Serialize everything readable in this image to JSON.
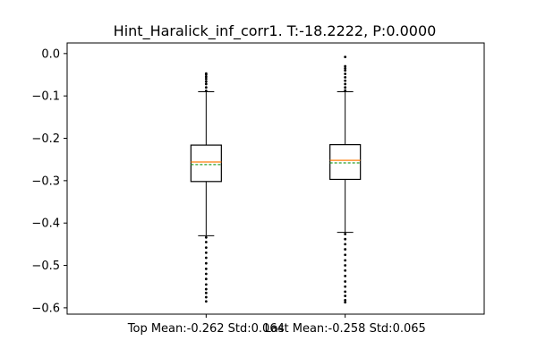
{
  "chart_data": {
    "type": "boxplot",
    "title": "Hint_Haralick_inf_corr1. T:-18.2222, P:0.0000",
    "xlabel": "",
    "ylabel": "",
    "ylim": [
      -0.615,
      0.025
    ],
    "yticks": [
      0.0,
      -0.1,
      -0.2,
      -0.3,
      -0.4,
      -0.5,
      -0.6
    ],
    "ytick_labels": [
      "0.0",
      "−0.1",
      "−0.2",
      "−0.3",
      "−0.4",
      "−0.5",
      "−0.6"
    ],
    "grid": false,
    "categories": [
      "Top Mean:-0.262 Std:0.064",
      "Last Mean:-0.258 Std:0.065"
    ],
    "boxes": [
      {
        "label": "Top Mean:-0.262 Std:0.064",
        "q1": -0.302,
        "median": -0.256,
        "q3": -0.216,
        "mean": -0.262,
        "whisker_low": -0.43,
        "whisker_high": -0.09,
        "fliers_high": [
          -0.088,
          -0.08,
          -0.072,
          -0.066,
          -0.06,
          -0.055,
          -0.05,
          -0.047
        ],
        "fliers_low": [
          -0.434,
          -0.445,
          -0.458,
          -0.47,
          -0.482,
          -0.495,
          -0.508,
          -0.52,
          -0.532,
          -0.545,
          -0.556,
          -0.565,
          -0.575,
          -0.585
        ]
      },
      {
        "label": "Last Mean:-0.258 Std:0.065",
        "q1": -0.297,
        "median": -0.252,
        "q3": -0.215,
        "mean": -0.258,
        "whisker_low": -0.422,
        "whisker_high": -0.09,
        "fliers_high": [
          -0.087,
          -0.08,
          -0.072,
          -0.064,
          -0.056,
          -0.048,
          -0.04,
          -0.035,
          -0.03,
          -0.008
        ],
        "fliers_low": [
          -0.426,
          -0.438,
          -0.45,
          -0.462,
          -0.475,
          -0.488,
          -0.5,
          -0.512,
          -0.525,
          -0.538,
          -0.55,
          -0.562,
          -0.572,
          -0.582,
          -0.587
        ]
      }
    ],
    "colors": {
      "box": "#000000",
      "median": "#ff7f0e",
      "mean": "#2ca02c",
      "flier": "#000000"
    }
  }
}
